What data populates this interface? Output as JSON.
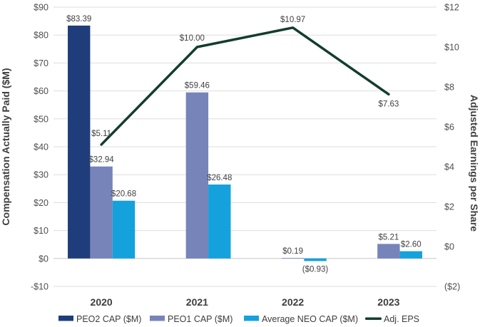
{
  "chart_data": {
    "type": "bar",
    "categories": [
      "2020",
      "2021",
      "2022",
      "2023"
    ],
    "series": [
      {
        "name": "PEO2 CAP ($M)",
        "kind": "bar",
        "axis": "left",
        "color": "#1f3d7a",
        "values": [
          83.39,
          null,
          null,
          null
        ],
        "labels": [
          "$83.39",
          "",
          "",
          ""
        ]
      },
      {
        "name": "PEO1 CAP ($M)",
        "kind": "bar",
        "axis": "left",
        "color": "#7684ba",
        "values": [
          32.94,
          59.46,
          0.19,
          5.21
        ],
        "labels": [
          "$32.94",
          "$59.46",
          "$0.19",
          "$5.21"
        ]
      },
      {
        "name": "Average NEO CAP ($M)",
        "kind": "bar",
        "axis": "left",
        "color": "#15a1dc",
        "values": [
          20.68,
          26.48,
          -0.93,
          2.6
        ],
        "labels": [
          "$20.68",
          "$26.48",
          "($0.93)",
          "$2.60"
        ]
      },
      {
        "name": "Adj. EPS",
        "kind": "line",
        "axis": "right",
        "color": "#123d2e",
        "values": [
          5.11,
          10.0,
          10.97,
          7.63
        ],
        "labels": [
          "$5.11",
          "$10.00",
          "$10.97",
          "$7.63"
        ]
      }
    ],
    "left_axis": {
      "title": "Compensation Actually Paid ($M)",
      "min": -10,
      "max": 90,
      "step": 10,
      "tick_labels": [
        "$90",
        "$80",
        "$70",
        "$60",
        "$50",
        "$40",
        "$30",
        "$20",
        "$10",
        "$0",
        "-$10"
      ]
    },
    "right_axis": {
      "title": "Adjusted Earnings per Share",
      "min": -2,
      "max": 12,
      "step": 2,
      "tick_labels": [
        "$12",
        "$10",
        "$8",
        "$6",
        "$4",
        "$2",
        "$0",
        "($2)"
      ]
    },
    "legend": {
      "position": "bottom",
      "items": [
        {
          "label": "PEO2 CAP ($M)",
          "marker": "rect",
          "color": "#1f3d7a"
        },
        {
          "label": "PEO1 CAP ($M)",
          "marker": "rect",
          "color": "#7684ba"
        },
        {
          "label": "Average NEO CAP ($M)",
          "marker": "rect",
          "color": "#15a1dc"
        },
        {
          "label": "Adj. EPS",
          "marker": "line",
          "color": "#123d2e"
        }
      ]
    },
    "grid": true,
    "colors": {
      "gridline": "#dedede",
      "zero_line": "#c6c6c6",
      "background": "#ffffff"
    }
  }
}
